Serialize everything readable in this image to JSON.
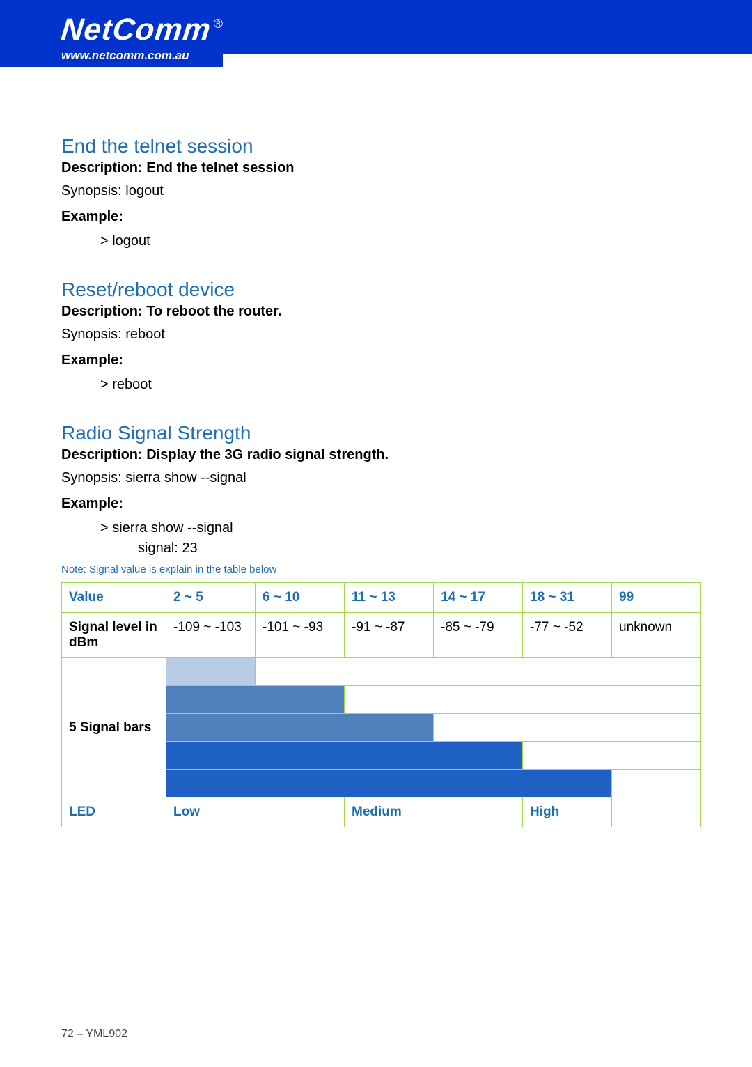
{
  "header": {
    "logo": "NetComm",
    "reg": "®",
    "url": "www.netcomm.com.au",
    "band_color": "#0033cc",
    "text_color": "#ffffff"
  },
  "sections": [
    {
      "title": "End the telnet session",
      "description": "Description: End the telnet session",
      "synopsis": "Synopsis:   logout",
      "example_label": "Example:",
      "example_lines": [
        "> logout"
      ]
    },
    {
      "title": "Reset/reboot device",
      "description": "Description: To reboot the router.",
      "synopsis": "Synopsis:   reboot",
      "example_label": "Example:",
      "example_lines": [
        "> reboot"
      ]
    },
    {
      "title": "Radio Signal Strength",
      "description": "Description: Display the 3G radio signal strength.",
      "synopsis": "Synopsis:   sierra show --signal",
      "example_label": "Example:",
      "example_lines": [
        "> sierra show --signal",
        "signal:  23"
      ]
    }
  ],
  "note": "Note: Signal value is explain in the table below",
  "table": {
    "header_row": {
      "label": "Value",
      "cells": [
        "2 ~ 5",
        "6 ~ 10",
        "11 ~ 13",
        "14 ~ 17",
        "18 ~ 31",
        "99"
      ]
    },
    "dbm_row": {
      "label": "Signal level in dBm",
      "cells": [
        "-109 ~ -103",
        "-101 ~ -93",
        "-91 ~ -87",
        "-85 ~ -79",
        "-77 ~ -52",
        "unknown"
      ]
    },
    "bars_label": "5 Signal bars",
    "bars": [
      {
        "span": 1,
        "color": "#b8cce4"
      },
      {
        "span": 2,
        "color": "#4f81bd"
      },
      {
        "span": 3,
        "color": "#4f81bd"
      },
      {
        "span": 4,
        "color": "#1f60c4"
      },
      {
        "span": 5,
        "color": "#1f60c4"
      }
    ],
    "led_row": {
      "label": "LED",
      "cells": [
        {
          "text": "Low",
          "span": 2
        },
        {
          "text": "Medium",
          "span": 2
        },
        {
          "text": "High",
          "span": 1
        },
        {
          "text": "",
          "span": 1
        }
      ]
    },
    "border_color": "#a5d94a"
  },
  "footer": "72 – YML902"
}
